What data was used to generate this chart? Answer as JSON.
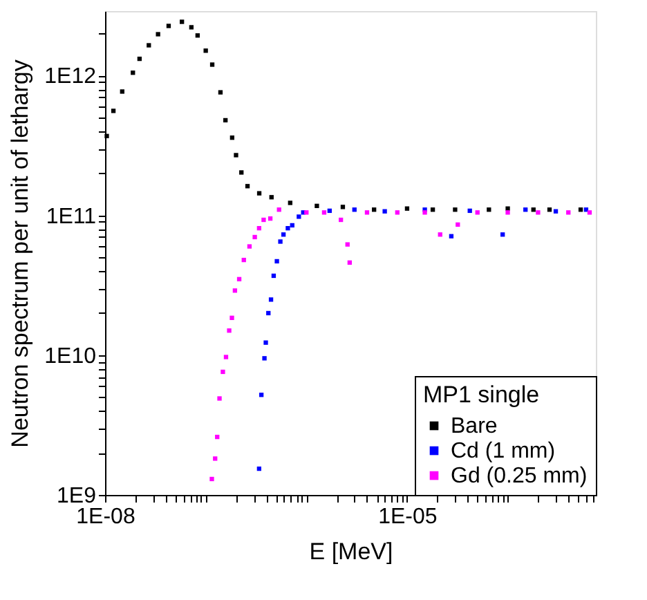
{
  "chart_data": {
    "type": "scatter",
    "xlabel": "E [MeV]",
    "ylabel": "Neutron spectrum per unit of lethargy",
    "legend_title": "MP1 single",
    "legend": "bottom right",
    "marker": "square",
    "grid": false,
    "log": "xy",
    "xlim": [
      1e-08,
      0.00075
    ],
    "ylim": [
      1000000000.0,
      2900000000000.0
    ],
    "xticks": [
      {
        "value": 1e-08,
        "label": "1E-08"
      },
      {
        "value": 1e-07,
        "label": null
      },
      {
        "value": 1e-06,
        "label": null
      },
      {
        "value": 1e-05,
        "label": "1E-05"
      },
      {
        "value": 0.0001,
        "label": null
      },
      {
        "value": 2e-08,
        "label": null
      },
      {
        "value": 3e-08,
        "label": null
      },
      {
        "value": 4e-08,
        "label": null
      },
      {
        "value": 5e-08,
        "label": null
      },
      {
        "value": 6e-08,
        "label": null
      },
      {
        "value": 7e-08,
        "label": null
      },
      {
        "value": 8e-08,
        "label": null
      },
      {
        "value": 9e-08,
        "label": null
      },
      {
        "value": 2e-07,
        "label": null
      },
      {
        "value": 3e-07,
        "label": null
      },
      {
        "value": 4e-07,
        "label": null
      },
      {
        "value": 5e-07,
        "label": null
      },
      {
        "value": 6e-07,
        "label": null
      },
      {
        "value": 7e-07,
        "label": null
      },
      {
        "value": 8e-07,
        "label": null
      },
      {
        "value": 9e-07,
        "label": null
      },
      {
        "value": 2e-06,
        "label": null
      },
      {
        "value": 3e-06,
        "label": null
      },
      {
        "value": 4e-06,
        "label": null
      },
      {
        "value": 5e-06,
        "label": null
      },
      {
        "value": 6e-06,
        "label": null
      },
      {
        "value": 7e-06,
        "label": null
      },
      {
        "value": 8e-06,
        "label": null
      },
      {
        "value": 9e-06,
        "label": null
      },
      {
        "value": 2e-05,
        "label": null
      },
      {
        "value": 3e-05,
        "label": null
      },
      {
        "value": 4e-05,
        "label": null
      },
      {
        "value": 5e-05,
        "label": null
      },
      {
        "value": 6e-05,
        "label": null
      },
      {
        "value": 7e-05,
        "label": null
      },
      {
        "value": 8e-05,
        "label": null
      },
      {
        "value": 9e-05,
        "label": null
      },
      {
        "value": 0.0002,
        "label": null
      },
      {
        "value": 0.0003,
        "label": null
      },
      {
        "value": 0.0004,
        "label": null
      },
      {
        "value": 0.0005,
        "label": null
      },
      {
        "value": 0.0006,
        "label": null
      },
      {
        "value": 0.0007,
        "label": null
      }
    ],
    "yticks": [
      {
        "value": 1000000000.0,
        "label": "1E9"
      },
      {
        "value": 10000000000.0,
        "label": "1E10"
      },
      {
        "value": 100000000000.0,
        "label": "1E11"
      },
      {
        "value": 1000000000000.0,
        "label": "1E12"
      },
      {
        "value": 2000000000.0,
        "label": null
      },
      {
        "value": 3000000000.0,
        "label": null
      },
      {
        "value": 4000000000.0,
        "label": null
      },
      {
        "value": 5000000000.0,
        "label": null
      },
      {
        "value": 6000000000.0,
        "label": null
      },
      {
        "value": 7000000000.0,
        "label": null
      },
      {
        "value": 8000000000.0,
        "label": null
      },
      {
        "value": 9000000000.0,
        "label": null
      },
      {
        "value": 20000000000.0,
        "label": null
      },
      {
        "value": 30000000000.0,
        "label": null
      },
      {
        "value": 40000000000.0,
        "label": null
      },
      {
        "value": 50000000000.0,
        "label": null
      },
      {
        "value": 60000000000.0,
        "label": null
      },
      {
        "value": 70000000000.0,
        "label": null
      },
      {
        "value": 80000000000.0,
        "label": null
      },
      {
        "value": 90000000000.0,
        "label": null
      },
      {
        "value": 200000000000.0,
        "label": null
      },
      {
        "value": 300000000000.0,
        "label": null
      },
      {
        "value": 400000000000.0,
        "label": null
      },
      {
        "value": 500000000000.0,
        "label": null
      },
      {
        "value": 600000000000.0,
        "label": null
      },
      {
        "value": 700000000000.0,
        "label": null
      },
      {
        "value": 800000000000.0,
        "label": null
      },
      {
        "value": 900000000000.0,
        "label": null
      },
      {
        "value": 2000000000000.0,
        "label": null
      }
    ],
    "series": [
      {
        "name": "Bare",
        "color": "#000000",
        "x": [
          1.04e-08,
          1.21e-08,
          1.48e-08,
          1.89e-08,
          2.2e-08,
          2.72e-08,
          3.36e-08,
          4.28e-08,
          5.8e-08,
          7.2e-08,
          8.3e-08,
          1e-07,
          1.16e-07,
          1.4e-07,
          1.57e-07,
          1.83e-07,
          2e-07,
          2.26e-07,
          2.6e-07,
          3.4e-07,
          4.5e-07,
          6.9e-07,
          1.27e-06,
          2.3e-06,
          4.7e-06,
          1e-05,
          1.8e-05,
          3e-05,
          6.5e-05,
          0.0001,
          0.00018,
          0.00026,
          0.00053
        ],
        "values": [
          370000000000.0,
          560000000000.0,
          770000000000.0,
          1050000000000.0,
          1320000000000.0,
          1650000000000.0,
          1980000000000.0,
          2270000000000.0,
          2430000000000.0,
          2220000000000.0,
          1940000000000.0,
          1510000000000.0,
          1200000000000.0,
          760000000000.0,
          480000000000.0,
          360000000000.0,
          270000000000.0,
          203000000000.0,
          162000000000.0,
          144000000000.0,
          135000000000.0,
          123000000000.0,
          117000000000.0,
          115000000000.0,
          110000000000.0,
          112000000000.0,
          110000000000.0,
          110000000000.0,
          110000000000.0,
          112000000000.0,
          110000000000.0,
          110000000000.0,
          110000000000.0
        ]
      },
      {
        "name": "Cd (1 mm)",
        "color": "#0000ff",
        "x": [
          3.39e-07,
          3.57e-07,
          3.83e-07,
          3.95e-07,
          4.19e-07,
          4.45e-07,
          4.73e-07,
          5.09e-07,
          5.51e-07,
          5.92e-07,
          6.54e-07,
          7.23e-07,
          8.41e-07,
          9.3e-07,
          1.7e-06,
          3e-06,
          6e-06,
          1.5e-05,
          2.75e-05,
          4.2e-05,
          8.9e-05,
          0.00015,
          0.0003,
          0.0006
        ],
        "values": [
          1540000000.0,
          5200000000.0,
          9500000000.0,
          12300000000.0,
          20000000000.0,
          25000000000.0,
          37000000000.0,
          47000000000.0,
          65000000000.0,
          73000000000.0,
          81000000000.0,
          85000000000.0,
          98000000000.0,
          105000000000.0,
          108000000000.0,
          110000000000.0,
          107000000000.0,
          110000000000.0,
          71000000000.0,
          108000000000.0,
          73000000000.0,
          110000000000.0,
          107000000000.0,
          110000000000.0
        ]
      },
      {
        "name": "Gd (0.25 mm)",
        "color": "#ff00ff",
        "x": [
          1.15e-07,
          1.24e-07,
          1.3e-07,
          1.37e-07,
          1.48e-07,
          1.59e-07,
          1.71e-07,
          1.82e-07,
          1.95e-07,
          2.15e-07,
          2.39e-07,
          2.72e-07,
          3.07e-07,
          3.39e-07,
          3.76e-07,
          4.38e-07,
          5.35e-07,
          1e-06,
          1.5e-06,
          2.2e-06,
          2.56e-06,
          2.69e-06,
          4e-06,
          8e-06,
          1.5e-05,
          2.13e-05,
          3.19e-05,
          5e-05,
          0.0001,
          0.0002,
          0.0004,
          0.00065
        ],
        "values": [
          1300000000.0,
          1820000000.0,
          2600000000.0,
          4900000000.0,
          7600000000.0,
          9700000000.0,
          15000000000.0,
          18500000000.0,
          29000000000.0,
          35000000000.0,
          48000000000.0,
          60000000000.0,
          70000000000.0,
          81000000000.0,
          93000000000.0,
          95000000000.0,
          110000000000.0,
          105000000000.0,
          105000000000.0,
          93000000000.0,
          62000000000.0,
          46000000000.0,
          105000000000.0,
          105000000000.0,
          105000000000.0,
          73000000000.0,
          86000000000.0,
          105000000000.0,
          105000000000.0,
          105000000000.0,
          105000000000.0,
          105000000000.0
        ]
      }
    ]
  }
}
